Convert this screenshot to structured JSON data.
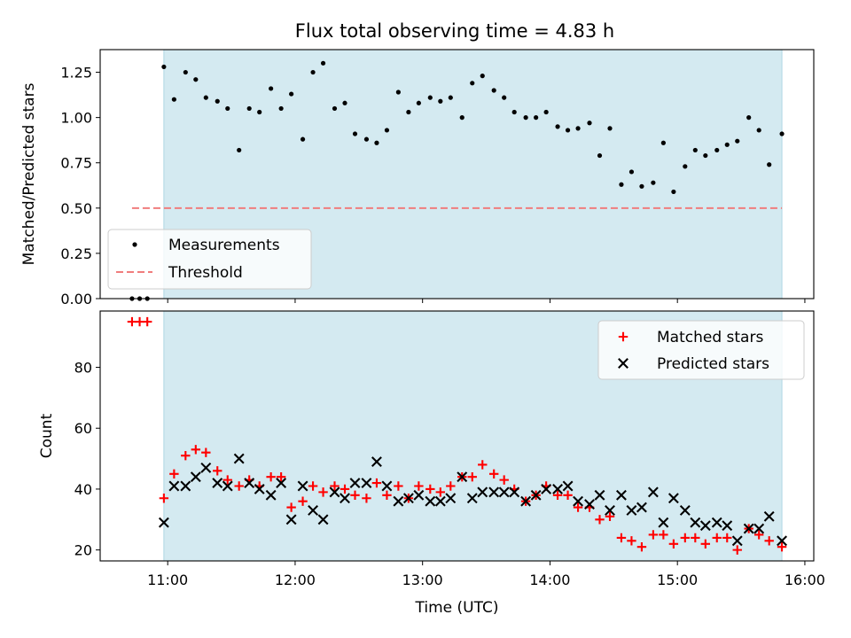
{
  "title": "Flux total observing time = 4.83 h",
  "colors": {
    "shade": "#d4eaf1",
    "shade_edge": "#aed6e3",
    "matched": "#ff0000",
    "predicted": "#000000",
    "measurements": "#000000",
    "threshold": "#f07d7d"
  },
  "chart_data": [
    {
      "type": "scatter",
      "panel": "top",
      "title": "Flux total observing time = 4.83 h",
      "xlabel": "",
      "ylabel": "Matched/Predicted stars",
      "xlim": [
        10.47,
        16.07
      ],
      "ylim": [
        0.0,
        1.375
      ],
      "yticks": [
        "0.00",
        "0.25",
        "0.50",
        "0.75",
        "1.00",
        "1.25"
      ],
      "shaded_span": [
        10.97,
        15.82
      ],
      "legend": {
        "position": "lower-left",
        "entries": [
          "Measurements",
          "Threshold"
        ]
      },
      "threshold": {
        "name": "Threshold",
        "value": 0.5,
        "x_range": [
          10.72,
          15.82
        ]
      },
      "series": [
        {
          "name": "Measurements",
          "marker": "dot",
          "x": [
            10.72,
            10.78,
            10.84,
            10.97,
            11.05,
            11.14,
            11.22,
            11.3,
            11.39,
            11.47,
            11.56,
            11.64,
            11.72,
            11.81,
            11.89,
            11.97,
            12.06,
            12.14,
            12.22,
            12.31,
            12.39,
            12.47,
            12.56,
            12.64,
            12.72,
            12.81,
            12.89,
            12.97,
            13.06,
            13.14,
            13.22,
            13.31,
            13.39,
            13.47,
            13.56,
            13.64,
            13.72,
            13.81,
            13.89,
            13.97,
            14.06,
            14.14,
            14.22,
            14.31,
            14.39,
            14.47,
            14.56,
            14.64,
            14.72,
            14.81,
            14.89,
            14.97,
            15.06,
            15.14,
            15.22,
            15.31,
            15.39,
            15.47,
            15.56,
            15.64,
            15.72,
            15.82
          ],
          "y": [
            0.0,
            0.0,
            0.0,
            1.28,
            1.1,
            1.25,
            1.21,
            1.11,
            1.09,
            1.05,
            0.82,
            1.05,
            1.03,
            1.16,
            1.05,
            1.13,
            0.88,
            1.25,
            1.3,
            1.05,
            1.08,
            0.91,
            0.88,
            0.86,
            0.93,
            1.14,
            1.03,
            1.08,
            1.11,
            1.09,
            1.11,
            1.0,
            1.19,
            1.23,
            1.15,
            1.11,
            1.03,
            1.0,
            1.0,
            1.03,
            0.95,
            0.93,
            0.94,
            0.97,
            0.79,
            0.94,
            0.63,
            0.7,
            0.62,
            0.64,
            0.86,
            0.59,
            0.73,
            0.82,
            0.79,
            0.82,
            0.85,
            0.87,
            1.0,
            0.93,
            0.74,
            0.91
          ]
        }
      ]
    },
    {
      "type": "scatter",
      "panel": "bottom",
      "xlabel": "Time (UTC)",
      "ylabel": "Count",
      "xlim": [
        10.47,
        16.07
      ],
      "ylim": [
        16.4,
        98.5
      ],
      "yticks": [
        "20",
        "40",
        "60",
        "80"
      ],
      "xticks": [
        "11:00",
        "12:00",
        "13:00",
        "14:00",
        "15:00",
        "16:00"
      ],
      "shaded_span": [
        10.97,
        15.82
      ],
      "legend": {
        "position": "upper-right",
        "entries": [
          "Matched stars",
          "Predicted stars"
        ]
      },
      "series": [
        {
          "name": "Matched stars",
          "marker": "plus",
          "x": [
            10.72,
            10.78,
            10.84,
            10.97,
            11.05,
            11.14,
            11.22,
            11.3,
            11.39,
            11.47,
            11.56,
            11.64,
            11.72,
            11.81,
            11.89,
            11.97,
            12.06,
            12.14,
            12.22,
            12.31,
            12.39,
            12.47,
            12.56,
            12.64,
            12.72,
            12.81,
            12.89,
            12.97,
            13.06,
            13.14,
            13.22,
            13.31,
            13.39,
            13.47,
            13.56,
            13.64,
            13.72,
            13.81,
            13.89,
            13.97,
            14.06,
            14.14,
            14.22,
            14.31,
            14.39,
            14.47,
            14.56,
            14.64,
            14.72,
            14.81,
            14.89,
            14.97,
            15.06,
            15.14,
            15.22,
            15.31,
            15.39,
            15.47,
            15.56,
            15.64,
            15.72,
            15.82
          ],
          "y": [
            95,
            95,
            95,
            37,
            45,
            51,
            53,
            52,
            46,
            43,
            41,
            43,
            41,
            44,
            44,
            34,
            36,
            41,
            39,
            41,
            40,
            38,
            37,
            42,
            38,
            41,
            37,
            41,
            40,
            39,
            41,
            44,
            44,
            48,
            45,
            43,
            40,
            36,
            38,
            41,
            38,
            38,
            34,
            34,
            30,
            31,
            24,
            23,
            21,
            25,
            25,
            22,
            24,
            24,
            22,
            24,
            24,
            20,
            27,
            25,
            23,
            21
          ]
        },
        {
          "name": "Predicted stars",
          "marker": "x",
          "x": [
            10.97,
            11.05,
            11.14,
            11.22,
            11.3,
            11.39,
            11.47,
            11.56,
            11.64,
            11.72,
            11.81,
            11.89,
            11.97,
            12.06,
            12.14,
            12.22,
            12.31,
            12.39,
            12.47,
            12.56,
            12.64,
            12.72,
            12.81,
            12.89,
            12.97,
            13.06,
            13.14,
            13.22,
            13.31,
            13.39,
            13.47,
            13.56,
            13.64,
            13.72,
            13.81,
            13.89,
            13.97,
            14.06,
            14.14,
            14.22,
            14.31,
            14.39,
            14.47,
            14.56,
            14.64,
            14.72,
            14.81,
            14.89,
            14.97,
            15.06,
            15.14,
            15.22,
            15.31,
            15.39,
            15.47,
            15.56,
            15.64,
            15.72,
            15.82
          ],
          "y": [
            29,
            41,
            41,
            44,
            47,
            42,
            41,
            50,
            42,
            40,
            38,
            42,
            30,
            41,
            33,
            30,
            39,
            37,
            42,
            42,
            49,
            41,
            36,
            37,
            38,
            36,
            36,
            37,
            44,
            37,
            39,
            39,
            39,
            39,
            36,
            38,
            40,
            40,
            41,
            36,
            35,
            38,
            33,
            38,
            33,
            34,
            39,
            29,
            37,
            33,
            29,
            28,
            29,
            28,
            23,
            27,
            27,
            31,
            23
          ]
        }
      ]
    }
  ]
}
